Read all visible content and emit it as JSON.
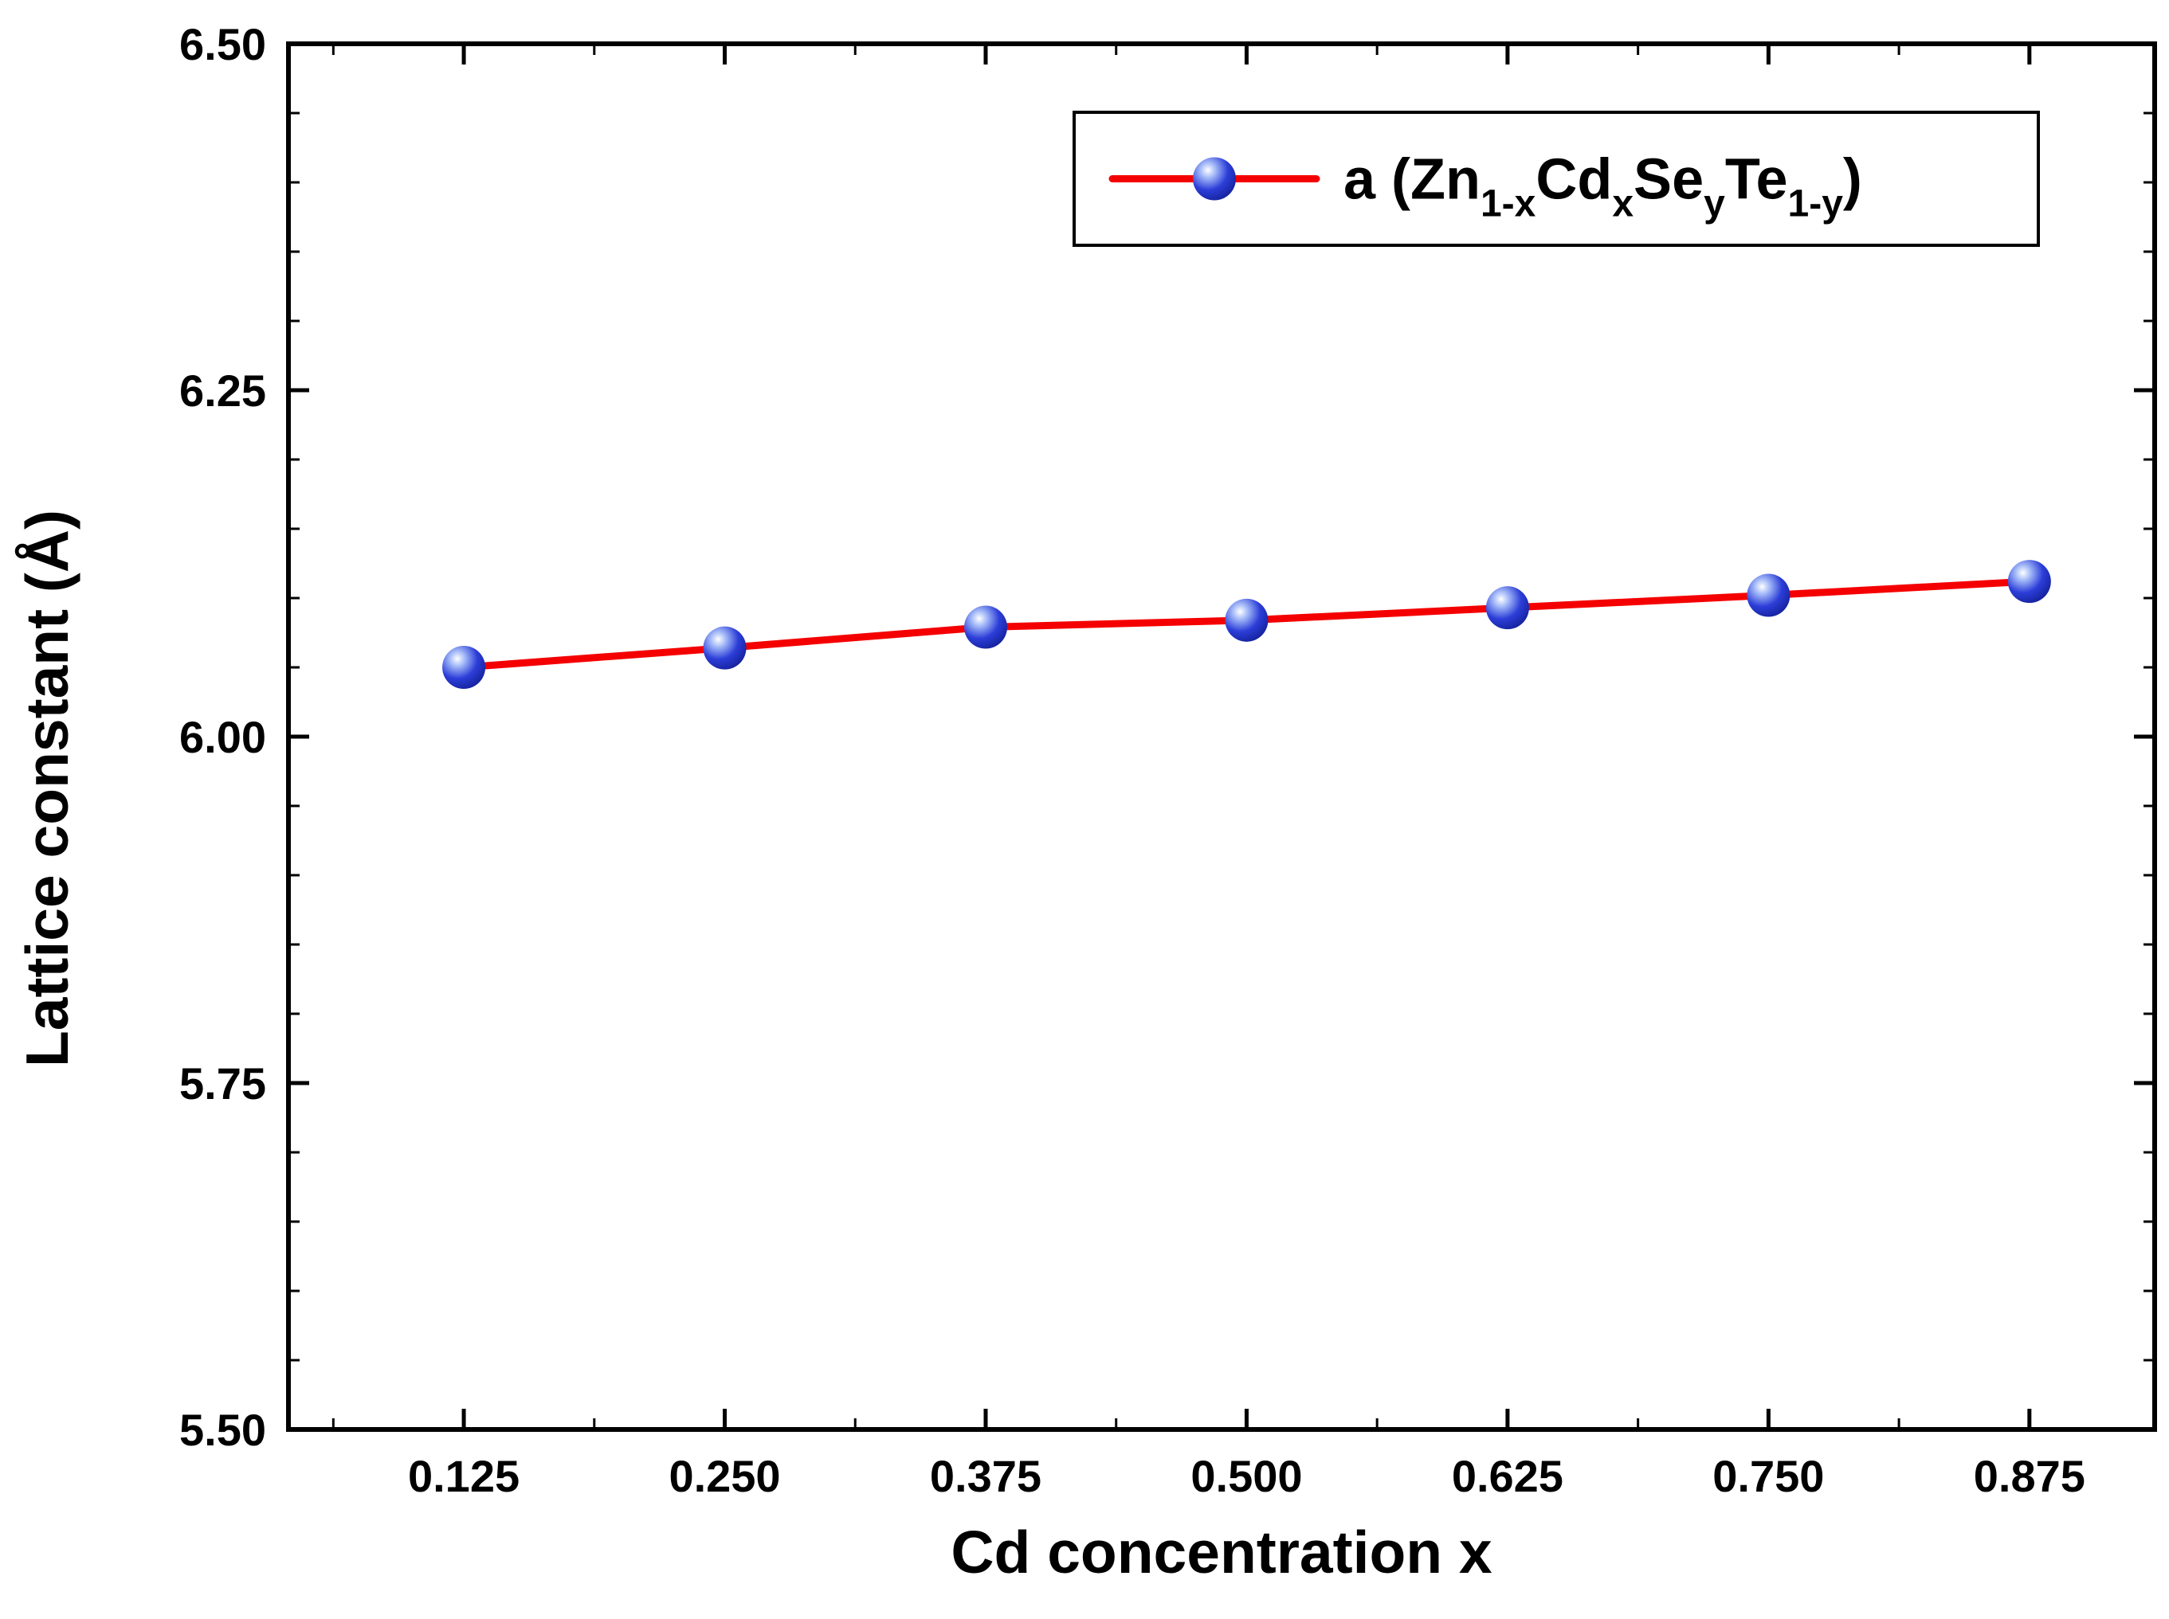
{
  "chart_data": {
    "type": "line",
    "title": "",
    "xlabel": "Cd concentration x",
    "ylabel": "Lattice constant (Å)",
    "xlim": [
      0.041,
      0.935
    ],
    "ylim": [
      5.5,
      6.5
    ],
    "x_ticks": [
      0.125,
      0.25,
      0.375,
      0.5,
      0.625,
      0.75,
      0.875
    ],
    "x_tick_labels": [
      "0.125",
      "0.250",
      "0.375",
      "0.500",
      "0.625",
      "0.750",
      "0.875"
    ],
    "y_ticks": [
      5.5,
      5.75,
      6.0,
      6.25,
      6.5
    ],
    "y_tick_labels": [
      "5.50",
      "5.75",
      "6.00",
      "6.25",
      "6.50"
    ],
    "x_minor_step": 0.0625,
    "y_minor_step": 0.05,
    "grid": false,
    "series": [
      {
        "name": "a (Zn1-xCdxSeyTe1-y)",
        "x": [
          0.125,
          0.25,
          0.375,
          0.5,
          0.625,
          0.75,
          0.875
        ],
        "y": [
          6.05,
          6.064,
          6.079,
          6.084,
          6.093,
          6.102,
          6.112
        ]
      }
    ],
    "legend": {
      "position": "top-right",
      "parts": [
        {
          "text": "a (Zn",
          "sub": false
        },
        {
          "text": "1-x",
          "sub": true
        },
        {
          "text": "Cd",
          "sub": false
        },
        {
          "text": "x",
          "sub": true
        },
        {
          "text": "Se",
          "sub": false
        },
        {
          "text": "y",
          "sub": true
        },
        {
          "text": "Te",
          "sub": false
        },
        {
          "text": "1-y",
          "sub": true
        },
        {
          "text": ")",
          "sub": false
        }
      ]
    },
    "colors": {
      "line": "#f40000",
      "marker": "#2c3ed8",
      "marker_dark": "#111d93",
      "marker_highlight": "#ffffff",
      "axis": "#000000",
      "background": "#ffffff"
    }
  }
}
